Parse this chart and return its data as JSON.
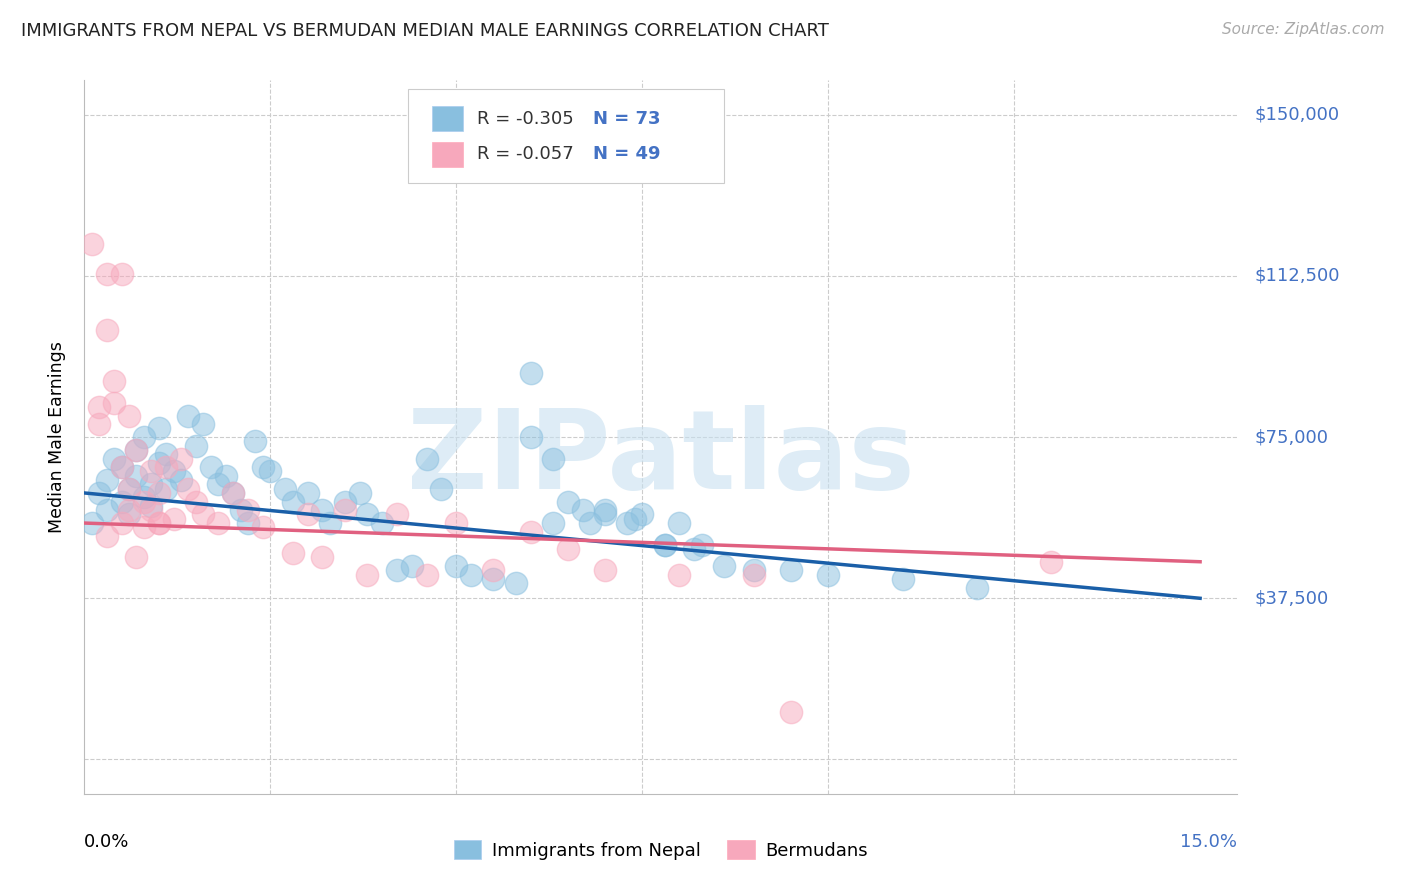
{
  "title": "IMMIGRANTS FROM NEPAL VS BERMUDAN MEDIAN MALE EARNINGS CORRELATION CHART",
  "source": "Source: ZipAtlas.com",
  "ylabel": "Median Male Earnings",
  "xlim": [
    0.0,
    0.155
  ],
  "ylim": [
    -8000,
    158000
  ],
  "ytick_vals": [
    0,
    37500,
    75000,
    112500,
    150000
  ],
  "ytick_labels": [
    "",
    "$37,500",
    "$75,000",
    "$112,500",
    "$150,000"
  ],
  "xtick_vals": [
    0.0,
    0.025,
    0.05,
    0.075,
    0.1,
    0.125,
    0.15
  ],
  "color_blue": "#89bfdf",
  "color_pink": "#f7a8bc",
  "color_blue_line": "#1a5fa8",
  "color_pink_line": "#e06080",
  "color_blue_text": "#4472C4",
  "color_grid": "#cccccc",
  "watermark": "ZIPatlas",
  "legend_r1": "R = -0.305",
  "legend_n1": "N = 73",
  "legend_r2": "R = -0.057",
  "legend_n2": "N = 49",
  "legend_label_nepal": "Immigrants from Nepal",
  "legend_label_bermuda": "Bermudans",
  "blue_line_x0": 0.0,
  "blue_line_y0": 62000,
  "blue_line_x1": 0.15,
  "blue_line_y1": 37500,
  "pink_line_x0": 0.0,
  "pink_line_y0": 55000,
  "pink_line_x1": 0.15,
  "pink_line_y1": 46000,
  "nepal_x": [
    0.001,
    0.002,
    0.003,
    0.003,
    0.004,
    0.005,
    0.005,
    0.006,
    0.006,
    0.007,
    0.007,
    0.008,
    0.008,
    0.009,
    0.009,
    0.01,
    0.01,
    0.011,
    0.011,
    0.012,
    0.013,
    0.014,
    0.015,
    0.016,
    0.017,
    0.018,
    0.019,
    0.02,
    0.021,
    0.022,
    0.023,
    0.024,
    0.025,
    0.027,
    0.028,
    0.03,
    0.032,
    0.033,
    0.035,
    0.037,
    0.038,
    0.04,
    0.042,
    0.044,
    0.046,
    0.048,
    0.05,
    0.052,
    0.055,
    0.058,
    0.06,
    0.063,
    0.065,
    0.068,
    0.07,
    0.073,
    0.075,
    0.078,
    0.08,
    0.083,
    0.06,
    0.063,
    0.067,
    0.07,
    0.074,
    0.078,
    0.082,
    0.086,
    0.09,
    0.095,
    0.1,
    0.11,
    0.12
  ],
  "nepal_y": [
    55000,
    62000,
    58000,
    65000,
    70000,
    68000,
    60000,
    63000,
    57000,
    72000,
    66000,
    61000,
    75000,
    64000,
    59000,
    77000,
    69000,
    63000,
    71000,
    67000,
    65000,
    80000,
    73000,
    78000,
    68000,
    64000,
    66000,
    62000,
    58000,
    55000,
    74000,
    68000,
    67000,
    63000,
    60000,
    62000,
    58000,
    55000,
    60000,
    62000,
    57000,
    55000,
    44000,
    45000,
    70000,
    63000,
    45000,
    43000,
    42000,
    41000,
    90000,
    55000,
    60000,
    55000,
    58000,
    55000,
    57000,
    50000,
    55000,
    50000,
    75000,
    70000,
    58000,
    57000,
    56000,
    50000,
    49000,
    45000,
    44000,
    44000,
    43000,
    42000,
    40000
  ],
  "bermuda_x": [
    0.001,
    0.002,
    0.002,
    0.003,
    0.003,
    0.004,
    0.004,
    0.005,
    0.005,
    0.006,
    0.006,
    0.007,
    0.007,
    0.008,
    0.008,
    0.009,
    0.009,
    0.01,
    0.01,
    0.011,
    0.012,
    0.013,
    0.014,
    0.015,
    0.016,
    0.018,
    0.02,
    0.022,
    0.024,
    0.028,
    0.03,
    0.032,
    0.035,
    0.038,
    0.042,
    0.046,
    0.05,
    0.055,
    0.06,
    0.065,
    0.07,
    0.08,
    0.09,
    0.095,
    0.003,
    0.005,
    0.006,
    0.01,
    0.13
  ],
  "bermuda_y": [
    120000,
    78000,
    82000,
    100000,
    52000,
    88000,
    83000,
    55000,
    68000,
    63000,
    58000,
    72000,
    47000,
    60000,
    54000,
    67000,
    58000,
    62000,
    55000,
    68000,
    56000,
    70000,
    63000,
    60000,
    57000,
    55000,
    62000,
    58000,
    54000,
    48000,
    57000,
    47000,
    58000,
    43000,
    57000,
    43000,
    55000,
    44000,
    53000,
    49000,
    44000,
    43000,
    43000,
    11000,
    113000,
    113000,
    80000,
    55000,
    46000
  ]
}
